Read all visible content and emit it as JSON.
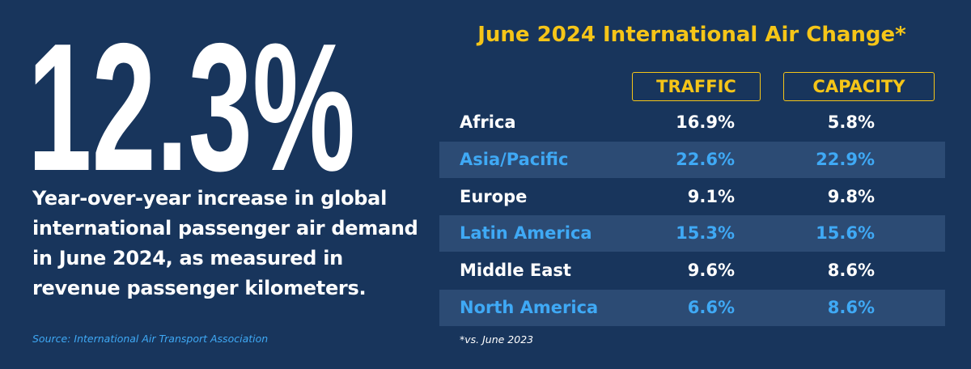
{
  "headline": {
    "value": "12.3%",
    "description": [
      "Year-over-year increase in global",
      "international passenger air demand",
      "in June 2024, as measured in",
      "revenue passenger kilometers."
    ],
    "source": "Source: International Air Transport Association"
  },
  "table": {
    "title": "June 2024 International Air Change*",
    "columns": [
      "TRAFFIC",
      "CAPACITY"
    ],
    "rows": [
      [
        "Africa",
        "16.9%",
        "5.8%"
      ],
      [
        "Asia/Pacific",
        "22.6%",
        "22.9%"
      ],
      [
        "Europe",
        "9.1%",
        "9.8%"
      ],
      [
        "Latin America",
        "15.3%",
        "15.6%"
      ],
      [
        "Middle East",
        "9.6%",
        "8.6%"
      ],
      [
        "North America",
        "6.6%",
        "8.6%"
      ]
    ],
    "footnote": "*vs. June 2023"
  }
}
